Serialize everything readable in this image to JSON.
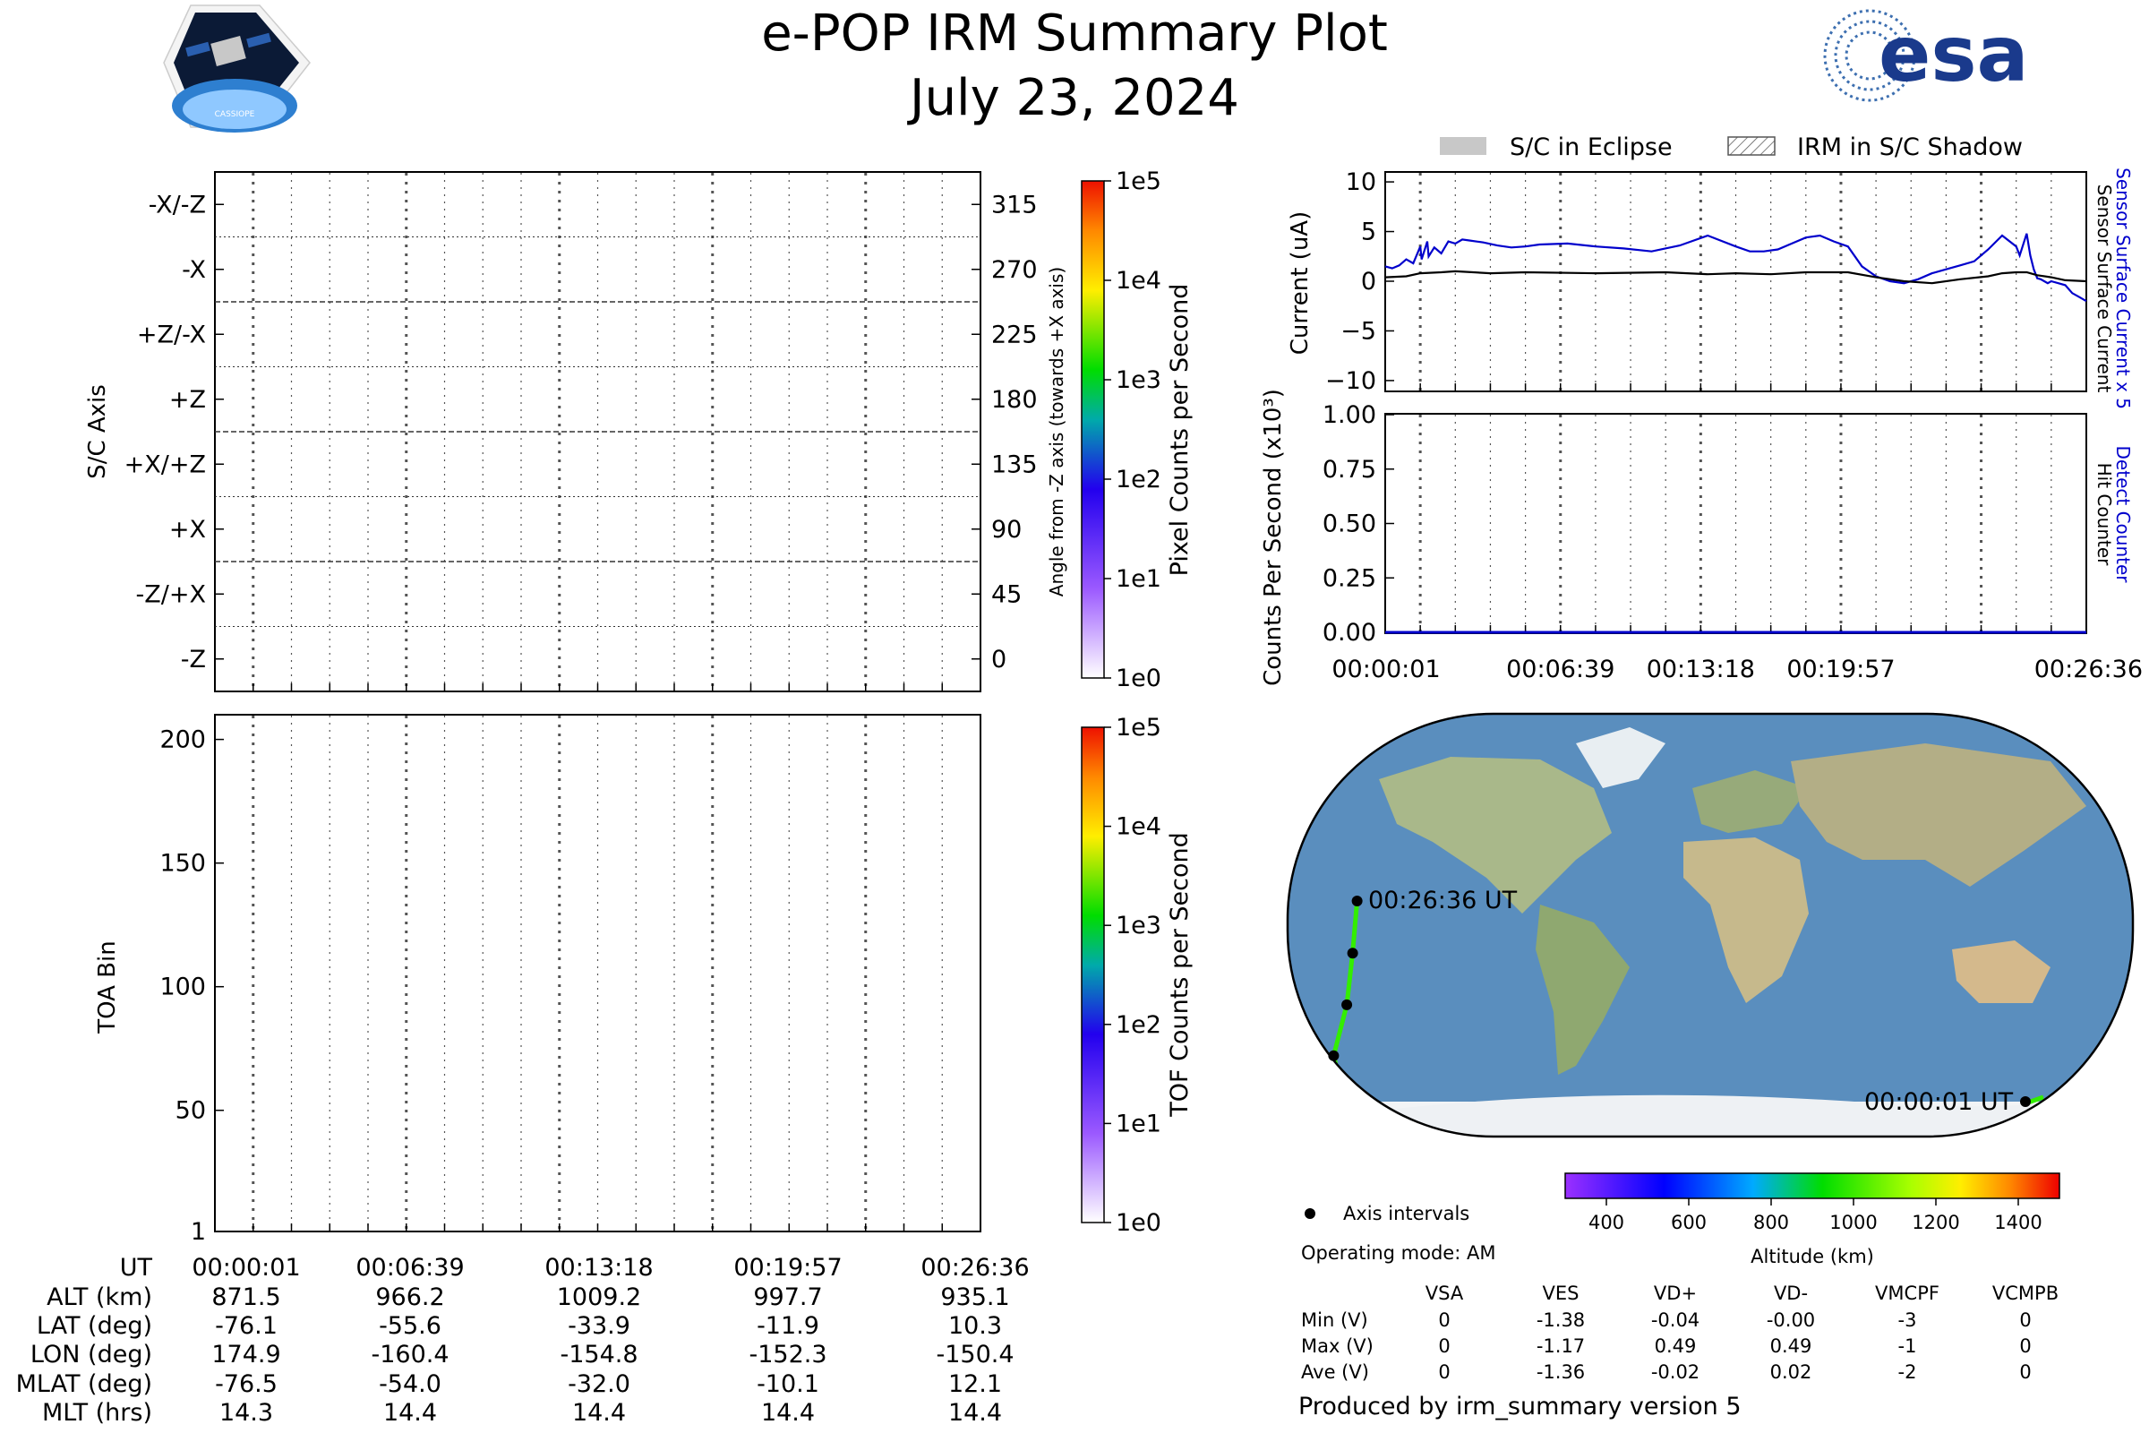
{
  "title": "e-POP IRM Summary Plot",
  "date": "July 23, 2024",
  "logos": {
    "left": "CASSIOPE",
    "right": "esa"
  },
  "time_ticks": [
    "00:00:01",
    "00:06:39",
    "00:13:18",
    "00:19:57",
    "00:26:36"
  ],
  "sc_axis_panel": {
    "ylabel": "S/C Axis",
    "axis_labels": [
      "-Z",
      "-Z/+X",
      "+X",
      "+X/+Z",
      "+Z",
      "+Z/-X",
      "-X",
      "-X/-Z"
    ],
    "angle_ticks": [
      "0",
      "45",
      "90",
      "135",
      "180",
      "225",
      "270",
      "315"
    ],
    "angle_label": "Angle from -Z axis (towards +X axis)",
    "colorbar_ticks": [
      "1e0",
      "1e1",
      "1e2",
      "1e3",
      "1e4",
      "1e5"
    ],
    "colorbar_label": "Pixel Counts per Second"
  },
  "toa_panel": {
    "ylabel": "TOA Bin",
    "y_ticks": [
      "1",
      "50",
      "100",
      "150",
      "200"
    ],
    "colorbar_ticks": [
      "1e0",
      "1e1",
      "1e2",
      "1e3",
      "1e4",
      "1e5"
    ],
    "colorbar_label": "TOF Counts per Second"
  },
  "ephemeris_table": {
    "row_labels": [
      "UT",
      "ALT (km)",
      "LAT (deg)",
      "LON (deg)",
      "MLAT (deg)",
      "MLT (hrs)"
    ],
    "rows": [
      [
        "871.5",
        "966.2",
        "1009.2",
        "997.7",
        "935.1"
      ],
      [
        "-76.1",
        "-55.6",
        "-33.9",
        "-11.9",
        "10.3"
      ],
      [
        "174.9",
        "-160.4",
        "-154.8",
        "-152.3",
        "-150.4"
      ],
      [
        "-76.5",
        "-54.0",
        "-32.0",
        "-10.1",
        "12.1"
      ],
      [
        "14.3",
        "14.4",
        "14.4",
        "14.4",
        "14.4"
      ]
    ]
  },
  "legend": {
    "eclipse": "S/C in Eclipse",
    "shadow": "IRM in S/C Shadow"
  },
  "chart_data": [
    {
      "type": "line",
      "ylabel": "Current (uA)",
      "ylim": [
        -11,
        11
      ],
      "y_ticks": [
        "10",
        "5",
        "0",
        "−5",
        "−10"
      ],
      "right_labels": [
        "Sensor Surface Current x 5",
        "Sensor Surface Current"
      ],
      "colors": {
        "x5": "#0000cc",
        "base": "#000000"
      },
      "series": [
        {
          "name": "Sensor Surface Current x 5",
          "x_fraction": [
            0,
            0.01,
            0.02,
            0.03,
            0.04,
            0.05,
            0.052,
            0.06,
            0.062,
            0.07,
            0.08,
            0.09,
            0.1,
            0.11,
            0.12,
            0.14,
            0.16,
            0.18,
            0.2,
            0.22,
            0.26,
            0.3,
            0.34,
            0.38,
            0.42,
            0.46,
            0.5,
            0.52,
            0.54,
            0.56,
            0.58,
            0.6,
            0.62,
            0.64,
            0.66,
            0.68,
            0.7,
            0.72,
            0.74,
            0.76,
            0.78,
            0.8,
            0.82,
            0.84,
            0.86,
            0.88,
            0.9,
            0.905,
            0.915,
            0.92,
            0.925,
            0.93,
            0.935,
            0.94,
            0.945,
            0.95,
            0.96,
            0.97,
            0.98,
            0.99,
            1.0
          ],
          "values": [
            1.5,
            1.3,
            1.6,
            2.2,
            1.8,
            3.5,
            2.2,
            4.0,
            2.5,
            3.4,
            2.8,
            4.0,
            3.8,
            4.2,
            4.1,
            3.9,
            3.6,
            3.4,
            3.5,
            3.7,
            3.8,
            3.5,
            3.3,
            3.0,
            3.6,
            4.6,
            3.5,
            3.0,
            3.0,
            3.2,
            3.8,
            4.4,
            4.6,
            4.0,
            3.5,
            1.5,
            0.5,
            0.0,
            -0.2,
            0.2,
            0.8,
            1.2,
            1.6,
            2.0,
            3.2,
            4.6,
            3.5,
            2.6,
            4.8,
            2.6,
            1.2,
            0.3,
            0.2,
            0.0,
            -0.2,
            0.0,
            -0.2,
            -0.4,
            -1.2,
            -1.6,
            -2.0
          ]
        },
        {
          "name": "Sensor Surface Current",
          "x_fraction": [
            0,
            0.03,
            0.05,
            0.08,
            0.1,
            0.15,
            0.2,
            0.3,
            0.4,
            0.46,
            0.5,
            0.55,
            0.6,
            0.66,
            0.7,
            0.74,
            0.78,
            0.82,
            0.86,
            0.88,
            0.9,
            0.915,
            0.93,
            0.95,
            0.97,
            1.0
          ],
          "values": [
            0.4,
            0.5,
            0.8,
            0.9,
            1.0,
            0.8,
            0.9,
            0.8,
            0.9,
            0.7,
            0.8,
            0.7,
            0.9,
            0.9,
            0.4,
            0.0,
            -0.2,
            0.2,
            0.5,
            0.8,
            0.9,
            0.9,
            0.6,
            0.4,
            0.1,
            0.0
          ]
        }
      ]
    },
    {
      "type": "line",
      "ylabel": "Counts Per Second (x10³)",
      "ylim": [
        0,
        1.0
      ],
      "y_ticks": [
        "0.00",
        "0.25",
        "0.50",
        "0.75",
        "1.00"
      ],
      "right_labels": [
        "Detect Counter",
        "Hit Counter"
      ],
      "series": [
        {
          "name": "Detect Counter",
          "values": [
            0,
            0
          ]
        },
        {
          "name": "Hit Counter",
          "values": [
            0,
            0
          ]
        }
      ]
    },
    {
      "type": "scatter",
      "title": "",
      "orbit_track": {
        "lat": [
          -76.1,
          -55.6,
          -33.9,
          -11.9,
          10.3
        ],
        "lon": [
          174.9,
          -160.4,
          -154.8,
          -152.3,
          -150.4
        ]
      },
      "start_label": "00:00:01 UT",
      "end_label": "00:26:36 UT",
      "colorbar": {
        "label": "Altitude (km)",
        "ticks": [
          "400",
          "600",
          "800",
          "1000",
          "1200",
          "1400"
        ],
        "range": [
          300,
          1500
        ]
      }
    }
  ],
  "info": {
    "axis_intervals": "Axis intervals",
    "operating_mode": "Operating mode: AM",
    "voltage_headers": [
      "VSA",
      "VES",
      "VD+",
      "VD-",
      "VMCPF",
      "VCMPB"
    ],
    "voltage_rows": [
      {
        "label": "Min (V)",
        "values": [
          "0",
          "-1.38",
          "-0.04",
          "-0.00",
          "-3",
          "0"
        ]
      },
      {
        "label": "Max (V)",
        "values": [
          "0",
          "-1.17",
          "0.49",
          "0.49",
          "-1",
          "0"
        ]
      },
      {
        "label": "Ave (V)",
        "values": [
          "0",
          "-1.36",
          "-0.02",
          "0.02",
          "-2",
          "0"
        ]
      }
    ],
    "produced_by": "Produced by irm_summary version 5"
  }
}
